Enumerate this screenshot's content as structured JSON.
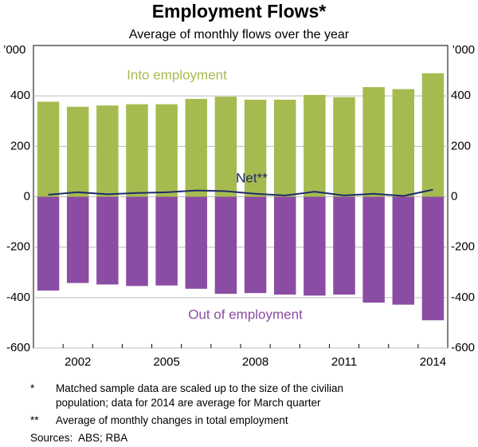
{
  "chart_data": {
    "type": "bar",
    "title": "Employment Flows*",
    "subtitle": "Average of monthly flows over the year",
    "y_unit": "’000",
    "categories": [
      null,
      "2002",
      null,
      null,
      "2005",
      null,
      null,
      "2008",
      null,
      null,
      "2011",
      null,
      null,
      "2014"
    ],
    "series": [
      {
        "name": "Into employment",
        "color": "#a5bb50",
        "type": "bar",
        "values": [
          377,
          357,
          362,
          367,
          367,
          388,
          397,
          385,
          385,
          404,
          395,
          435,
          427,
          490
        ]
      },
      {
        "name": "Out of employment",
        "color": "#8b4ca3",
        "type": "bar",
        "values": [
          -372,
          -342,
          -348,
          -354,
          -352,
          -365,
          -385,
          -382,
          -388,
          -392,
          -388,
          -420,
          -428,
          -490
        ]
      },
      {
        "name": "Net**",
        "color": "#1f2a6b",
        "type": "line",
        "values": [
          8,
          18,
          10,
          15,
          18,
          25,
          22,
          12,
          5,
          20,
          5,
          12,
          3,
          28
        ]
      }
    ],
    "ylim": [
      -600,
      600
    ],
    "yticks": [
      -600,
      -400,
      -200,
      0,
      200,
      400
    ],
    "grid": true,
    "notes": [
      {
        "symbol": "*",
        "text": "Matched sample data are scaled up to the size of the civilian population; data for 2014 are average for March quarter"
      },
      {
        "symbol": "**",
        "text": "Average of monthly changes in total employment"
      }
    ],
    "sources": "Sources:  ABS; RBA"
  }
}
